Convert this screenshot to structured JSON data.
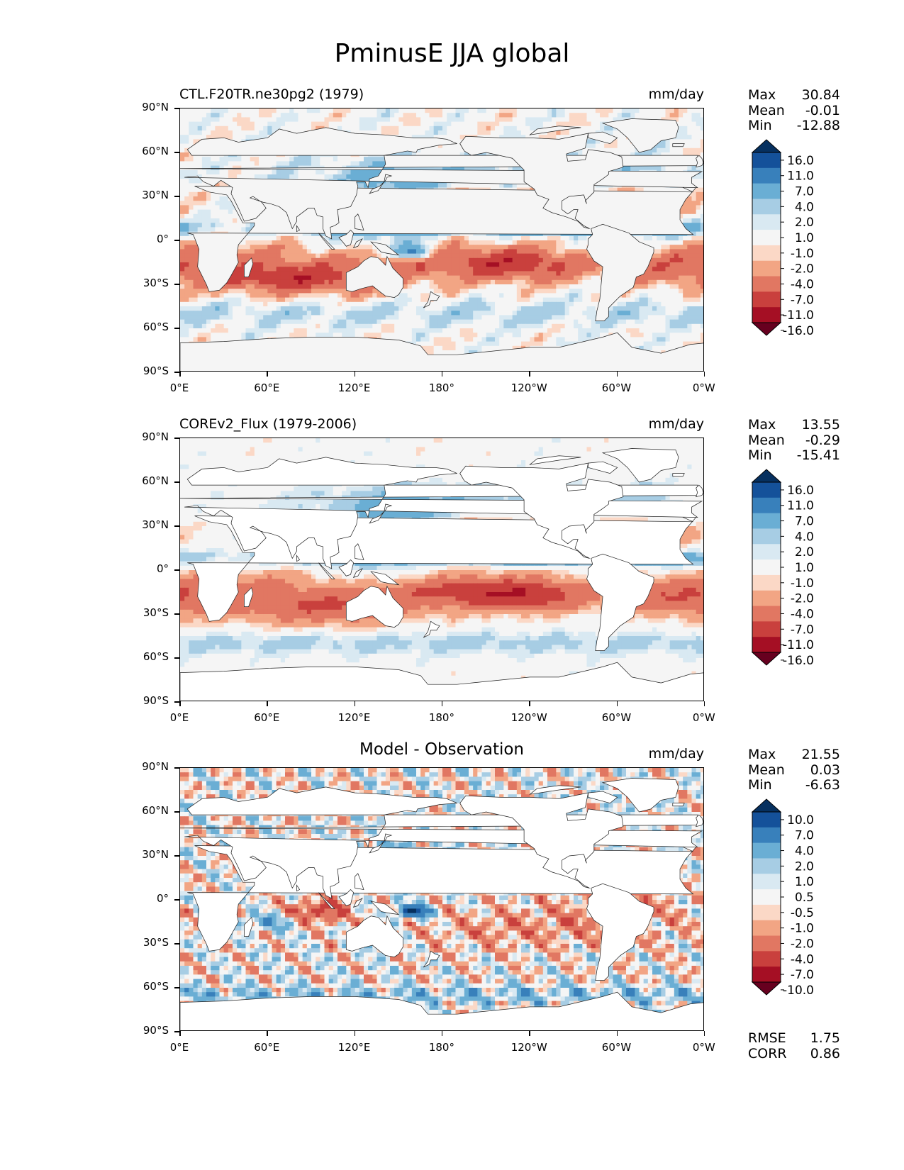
{
  "figure_title": "PminusE JJA global",
  "axes": {
    "lat_labels": [
      "90°N",
      "60°N",
      "30°N",
      "0°",
      "30°S",
      "60°S",
      "90°S"
    ],
    "lon_labels": [
      "0°E",
      "60°E",
      "120°E",
      "180°",
      "120°W",
      "60°W",
      "0°W"
    ]
  },
  "colors": {
    "ramp": [
      "#67001f",
      "#a50f24",
      "#c9403d",
      "#e17762",
      "#f2a584",
      "#fbd8c6",
      "#f5f5f5",
      "#d9e9f2",
      "#a7cde4",
      "#6aaed4",
      "#3880bb",
      "#14519a",
      "#06305f"
    ],
    "land": "#ffffff",
    "ocean_neutral": "#f5f5f5"
  },
  "panels": [
    {
      "title": "CTL.F20TR.ne30pg2 (1979)",
      "units": "mm/day",
      "stats": {
        "max_label": "Max",
        "max": "30.84",
        "mean_label": "Mean",
        "mean": "-0.01",
        "min_label": "Min",
        "min": "-12.88"
      },
      "colorbar_levels": [
        "16.0",
        "11.0",
        "7.0",
        "4.0",
        "2.0",
        "1.0",
        "-1.0",
        "-2.0",
        "-4.0",
        "-7.0",
        "-11.0",
        "-16.0"
      ]
    },
    {
      "title": "COREv2_Flux (1979-2006)",
      "units": "mm/day",
      "stats": {
        "max_label": "Max",
        "max": "13.55",
        "mean_label": "Mean",
        "mean": "-0.29",
        "min_label": "Min",
        "min": "-15.41"
      },
      "colorbar_levels": [
        "16.0",
        "11.0",
        "7.0",
        "4.0",
        "2.0",
        "1.0",
        "-1.0",
        "-2.0",
        "-4.0",
        "-7.0",
        "-11.0",
        "-16.0"
      ]
    },
    {
      "title": "Model - Observation",
      "units": "mm/day",
      "stats": {
        "max_label": "Max",
        "max": "21.55",
        "mean_label": "Mean",
        "mean": "0.03",
        "min_label": "Min",
        "min": "-6.63"
      },
      "colorbar_levels": [
        "10.0",
        "7.0",
        "4.0",
        "2.0",
        "1.0",
        "0.5",
        "-0.5",
        "-1.0",
        "-2.0",
        "-4.0",
        "-7.0",
        "-10.0"
      ],
      "metrics": {
        "rmse_label": "RMSE",
        "rmse": "1.75",
        "corr_label": "CORR",
        "corr": "0.86"
      }
    }
  ]
}
